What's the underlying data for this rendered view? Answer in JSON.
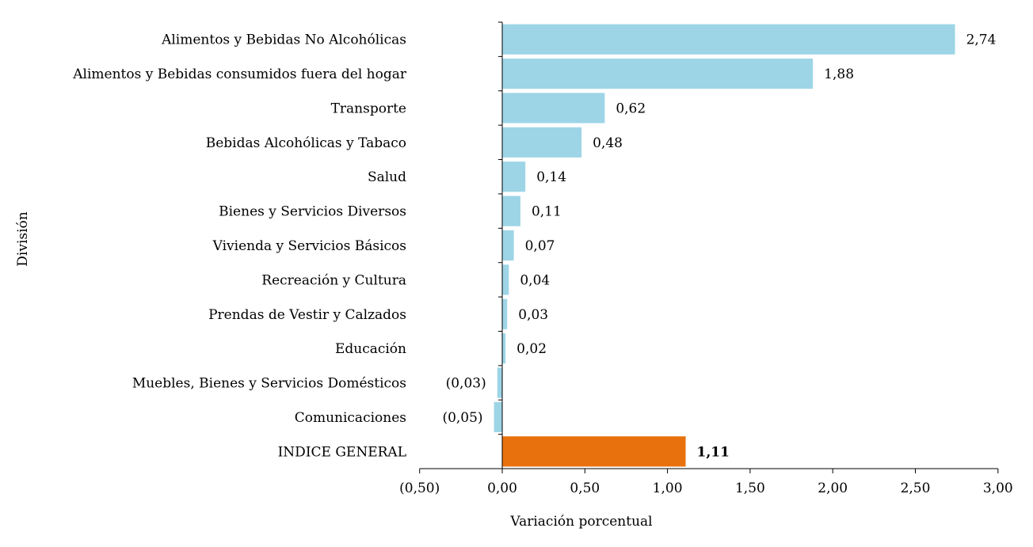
{
  "chart_data": {
    "type": "bar",
    "orientation": "horizontal",
    "xlabel": "Variación porcentual",
    "ylabel": "División",
    "xlim": [
      -0.5,
      3.0
    ],
    "x_ticks": [
      "(0,50)",
      "0,00",
      "0,50",
      "1,00",
      "1,50",
      "2,00",
      "2,50",
      "3,00"
    ],
    "x_tick_values": [
      -0.5,
      0,
      0.5,
      1.0,
      1.5,
      2.0,
      2.5,
      3.0
    ],
    "grid": false,
    "categories": [
      "Alimentos y Bebidas No Alcohólicas",
      "Alimentos y Bebidas consumidos fuera del hogar",
      "Transporte",
      "Bebidas Alcohólicas y Tabaco",
      "Salud",
      "Bienes y Servicios Diversos",
      "Vivienda y Servicios Básicos",
      "Recreación y Cultura",
      "Prendas de Vestir y Calzados",
      "Educación",
      "Muebles, Bienes y Servicios Domésticos",
      "Comunicaciones",
      "INDICE GENERAL"
    ],
    "values": [
      2.74,
      1.88,
      0.62,
      0.48,
      0.14,
      0.11,
      0.07,
      0.04,
      0.03,
      0.02,
      -0.03,
      -0.05,
      1.11
    ],
    "value_labels": [
      "2,74",
      "1,88",
      "0,62",
      "0,48",
      "0,14",
      "0,11",
      "0,07",
      "0,04",
      "0,03",
      "0,02",
      "(0,03)",
      "(0,05)",
      "1,11"
    ],
    "colors": {
      "bar": "#9DD5E6",
      "highlight": "#E8710E",
      "axis": "#000000"
    },
    "highlight_index": 12
  }
}
